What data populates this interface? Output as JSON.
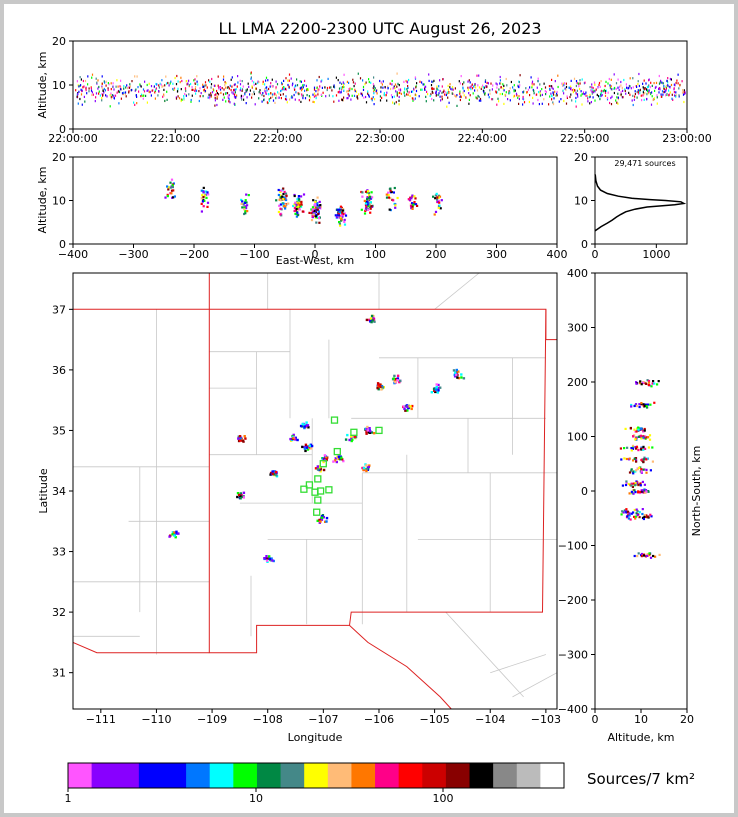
{
  "title": "LL LMA 2200-2300 UTC August 26, 2023",
  "source_count": "29,471 sources",
  "colorbar_label": "Sources/7 km²",
  "colorbar": {
    "colors": [
      "#ff55ff",
      "#8800ff",
      "#8800ff",
      "#0000ff",
      "#0000ff",
      "#0077ff",
      "#00ffff",
      "#00ff00",
      "#008844",
      "#448888",
      "#ffff00",
      "#ffbb77",
      "#ff7700",
      "#ff0088",
      "#ff0000",
      "#cc0000",
      "#880000",
      "#000000",
      "#888888",
      "#bbbbbb",
      "#ffffff"
    ],
    "tick_labels": [
      "1",
      "10",
      "100"
    ]
  },
  "chart_data": [
    {
      "type": "scatter",
      "name": "altitude-time",
      "xlabel": "",
      "ylabel": "Altitude, km",
      "x_tick_labels": [
        "22:00:00",
        "22:10:00",
        "22:20:00",
        "22:30:00",
        "22:40:00",
        "22:50:00",
        "23:00:00"
      ],
      "xlim": [
        "22:00:00",
        "23:00:00"
      ],
      "ylim": [
        0,
        20
      ],
      "y_ticks": [
        0,
        10,
        20
      ]
    },
    {
      "type": "scatter",
      "name": "altitude-eastwest",
      "xlabel": "East-West, km",
      "ylabel": "Altitude, km",
      "xlim": [
        -400,
        400
      ],
      "ylim": [
        0,
        20
      ],
      "x_ticks": [
        -400,
        -300,
        -200,
        -100,
        0,
        100,
        200,
        300,
        400
      ],
      "y_ticks": [
        0,
        10,
        20
      ],
      "clusters": [
        {
          "x": -240,
          "z": 13
        },
        {
          "x": -185,
          "z": 11
        },
        {
          "x": -120,
          "z": 9
        },
        {
          "x": -55,
          "z": 10
        },
        {
          "x": -30,
          "z": 9
        },
        {
          "x": 0,
          "z": 8
        },
        {
          "x": 40,
          "z": 7
        },
        {
          "x": 85,
          "z": 10
        },
        {
          "x": 125,
          "z": 11
        },
        {
          "x": 160,
          "z": 10
        },
        {
          "x": 200,
          "z": 10
        }
      ]
    },
    {
      "type": "line",
      "name": "altitude-histogram",
      "xlim": [
        0,
        1500
      ],
      "ylim": [
        0,
        20
      ],
      "x_ticks": [
        0,
        1000
      ],
      "y_ticks": [
        0,
        10,
        20
      ],
      "profile": [
        [
          0,
          3
        ],
        [
          100,
          4
        ],
        [
          200,
          4.8
        ],
        [
          280,
          5.5
        ],
        [
          350,
          6.2
        ],
        [
          420,
          6.8
        ],
        [
          500,
          7.4
        ],
        [
          650,
          8
        ],
        [
          850,
          8.5
        ],
        [
          1100,
          8.8
        ],
        [
          1300,
          9
        ],
        [
          1450,
          9.3
        ],
        [
          1400,
          9.7
        ],
        [
          1150,
          10
        ],
        [
          900,
          10.2
        ],
        [
          600,
          10.5
        ],
        [
          380,
          11
        ],
        [
          200,
          11.6
        ],
        [
          90,
          12.4
        ],
        [
          40,
          13.3
        ],
        [
          15,
          14.5
        ],
        [
          5,
          15.8
        ],
        [
          0,
          16
        ]
      ]
    },
    {
      "type": "scatter",
      "name": "plan-view",
      "xlabel": "Longitude",
      "ylabel": "Latitude",
      "xlim": [
        -111.5,
        -102.8
      ],
      "ylim": [
        30.4,
        37.6
      ],
      "x_ticks": [
        -111,
        -110,
        -109,
        -108,
        -107,
        -106,
        -105,
        -104,
        -103
      ],
      "y_ticks": [
        31,
        32,
        33,
        34,
        35,
        36,
        37
      ],
      "cells": [
        {
          "lon": -107.35,
          "lat": 35.1
        },
        {
          "lon": -107.55,
          "lat": 34.9
        },
        {
          "lon": -107.3,
          "lat": 34.75
        },
        {
          "lon": -106.5,
          "lat": 34.9
        },
        {
          "lon": -106.2,
          "lat": 35.0
        },
        {
          "lon": -106.0,
          "lat": 35.75
        },
        {
          "lon": -105.7,
          "lat": 35.85
        },
        {
          "lon": -105.5,
          "lat": 35.4
        },
        {
          "lon": -105.0,
          "lat": 35.7
        },
        {
          "lon": -107.9,
          "lat": 34.3
        },
        {
          "lon": -107.1,
          "lat": 34.4
        },
        {
          "lon": -106.25,
          "lat": 34.4
        },
        {
          "lon": -106.75,
          "lat": 34.55
        },
        {
          "lon": -108.0,
          "lat": 32.9
        },
        {
          "lon": -109.7,
          "lat": 33.3
        },
        {
          "lon": -108.5,
          "lat": 34.88
        },
        {
          "lon": -106.15,
          "lat": 36.87
        },
        {
          "lon": -107.05,
          "lat": 33.55
        },
        {
          "lon": -108.5,
          "lat": 33.95
        },
        {
          "lon": -107.0,
          "lat": 34.55
        },
        {
          "lon": -104.6,
          "lat": 35.95
        }
      ],
      "stations": [
        {
          "lon": -107.35,
          "lat": 34.03
        },
        {
          "lon": -107.25,
          "lat": 34.1
        },
        {
          "lon": -107.15,
          "lat": 33.98
        },
        {
          "lon": -107.1,
          "lat": 34.2
        },
        {
          "lon": -107.1,
          "lat": 33.85
        },
        {
          "lon": -107.05,
          "lat": 34.0
        },
        {
          "lon": -106.9,
          "lat": 34.02
        },
        {
          "lon": -107.12,
          "lat": 33.65
        },
        {
          "lon": -106.8,
          "lat": 35.17
        },
        {
          "lon": -106.45,
          "lat": 34.97
        },
        {
          "lon": -106.0,
          "lat": 35.0
        },
        {
          "lon": -106.75,
          "lat": 34.65
        },
        {
          "lon": -107.0,
          "lat": 34.45
        }
      ]
    },
    {
      "type": "scatter",
      "name": "northsouth-altitude",
      "xlabel": "Altitude, km",
      "ylabel": "North-South, km",
      "xlim": [
        0,
        20
      ],
      "ylim": [
        -400,
        400
      ],
      "x_ticks": [
        0,
        10,
        20
      ],
      "y_ticks": [
        -400,
        -300,
        -200,
        -100,
        0,
        100,
        200,
        300,
        400
      ],
      "bands": [
        {
          "y": 200,
          "z": 11
        },
        {
          "y": 160,
          "z": 10
        },
        {
          "y": 115,
          "z": 9
        },
        {
          "y": 100,
          "z": 10
        },
        {
          "y": 80,
          "z": 9
        },
        {
          "y": 60,
          "z": 9
        },
        {
          "y": 40,
          "z": 9
        },
        {
          "y": 15,
          "z": 8
        },
        {
          "y": 0,
          "z": 10
        },
        {
          "y": -35,
          "z": 7
        },
        {
          "y": -45,
          "z": 9
        },
        {
          "y": -115,
          "z": 11
        }
      ]
    }
  ]
}
